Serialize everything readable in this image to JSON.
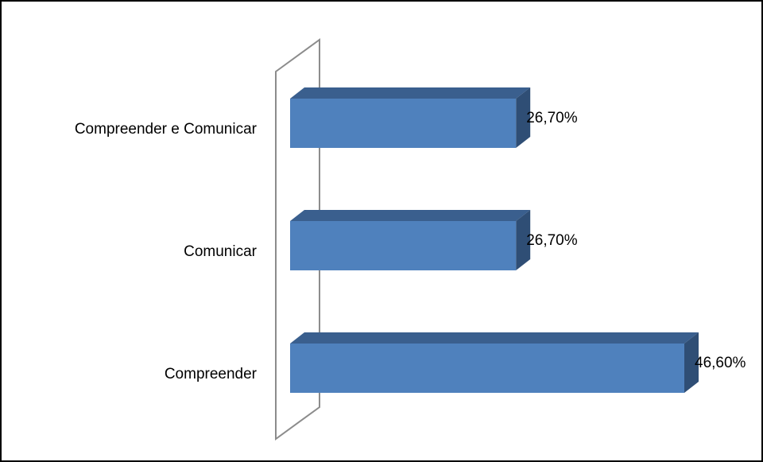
{
  "chart_data": {
    "type": "bar",
    "orientation": "horizontal",
    "three_d": true,
    "title": "",
    "xlabel": "",
    "ylabel": "",
    "categories": [
      "Compreender e Comunicar",
      "Comunicar",
      "Compreender"
    ],
    "values": [
      26.7,
      26.7,
      46.6
    ],
    "value_labels": [
      "26,70%",
      "26,70%",
      "46,60%"
    ],
    "xlim": [
      0,
      50
    ],
    "grid": false,
    "legend": "none",
    "colors": {
      "bar_front": "#4f81bd",
      "bar_top": "#3a5f8e",
      "bar_side": "#2f4e75",
      "axis_wall": "#8c8c8c"
    }
  }
}
